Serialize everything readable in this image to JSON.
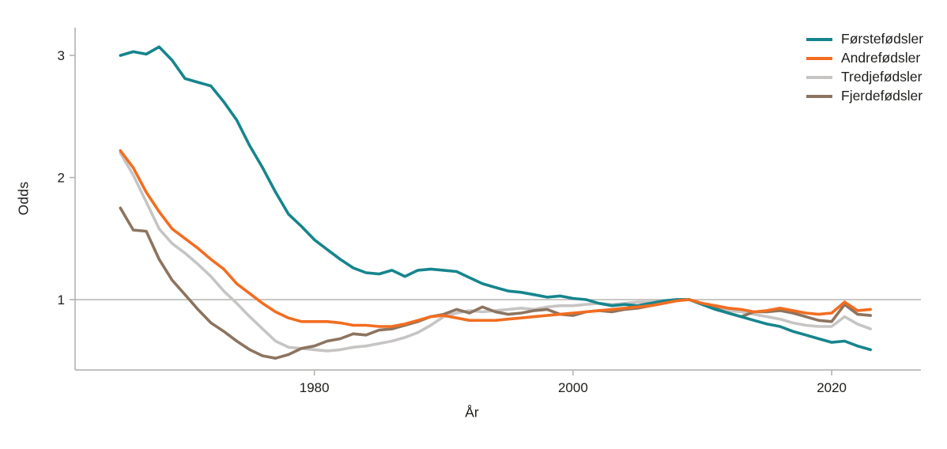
{
  "chart_data": {
    "type": "line",
    "title": "",
    "xlabel": "År",
    "ylabel": "Odds",
    "grid": false,
    "reference_line_y": 1,
    "legend_position": "top-right",
    "xlim": [
      1961.5,
      2026.9
    ],
    "ylim": [
      0.424,
      3.227
    ],
    "x_tick_years": [
      1980,
      2000,
      2020
    ],
    "x_tick_labels": [
      "1980",
      "2000",
      "2020"
    ],
    "y_tick_values": [
      1,
      2,
      3
    ],
    "y_tick_labels": [
      "1",
      "2",
      "3"
    ],
    "axis_color": "#b0aeab",
    "text_color": "#1d1d1b",
    "x": [
      1965,
      1966,
      1967,
      1968,
      1969,
      1970,
      1971,
      1972,
      1973,
      1974,
      1975,
      1976,
      1977,
      1978,
      1979,
      1980,
      1981,
      1982,
      1983,
      1984,
      1985,
      1986,
      1987,
      1988,
      1989,
      1990,
      1991,
      1992,
      1993,
      1994,
      1995,
      1996,
      1997,
      1998,
      1999,
      2000,
      2001,
      2002,
      2003,
      2004,
      2005,
      2006,
      2007,
      2008,
      2009,
      2010,
      2011,
      2012,
      2013,
      2014,
      2015,
      2016,
      2017,
      2018,
      2019,
      2020,
      2021,
      2022,
      2023
    ],
    "series": [
      {
        "name": "Førstefødsler",
        "color": "#16858d",
        "values": [
          3.0,
          3.03,
          3.01,
          3.07,
          2.96,
          2.81,
          2.78,
          2.75,
          2.62,
          2.47,
          2.26,
          2.08,
          1.88,
          1.7,
          1.6,
          1.49,
          1.41,
          1.33,
          1.26,
          1.22,
          1.21,
          1.24,
          1.19,
          1.24,
          1.25,
          1.24,
          1.23,
          1.18,
          1.13,
          1.1,
          1.07,
          1.06,
          1.04,
          1.02,
          1.03,
          1.01,
          1.0,
          0.97,
          0.95,
          0.96,
          0.95,
          0.97,
          0.99,
          1.0,
          1.0,
          0.96,
          0.92,
          0.89,
          0.86,
          0.83,
          0.8,
          0.78,
          0.74,
          0.71,
          0.68,
          0.65,
          0.66,
          0.62,
          0.59
        ]
      },
      {
        "name": "Andrefødsler",
        "color": "#f26d21",
        "values": [
          2.22,
          2.08,
          1.88,
          1.72,
          1.58,
          1.5,
          1.42,
          1.33,
          1.25,
          1.13,
          1.05,
          0.97,
          0.9,
          0.85,
          0.82,
          0.82,
          0.82,
          0.81,
          0.79,
          0.79,
          0.78,
          0.78,
          0.8,
          0.83,
          0.86,
          0.87,
          0.85,
          0.83,
          0.83,
          0.83,
          0.84,
          0.85,
          0.86,
          0.87,
          0.88,
          0.89,
          0.9,
          0.91,
          0.92,
          0.93,
          0.94,
          0.95,
          0.97,
          0.99,
          1.0,
          0.97,
          0.95,
          0.93,
          0.92,
          0.9,
          0.91,
          0.93,
          0.91,
          0.89,
          0.88,
          0.89,
          0.98,
          0.91,
          0.92
        ]
      },
      {
        "name": "Tredjefødsler",
        "color": "#c6c5c4",
        "values": [
          2.2,
          2.02,
          1.8,
          1.58,
          1.46,
          1.38,
          1.29,
          1.19,
          1.07,
          0.97,
          0.86,
          0.76,
          0.66,
          0.61,
          0.6,
          0.59,
          0.58,
          0.59,
          0.61,
          0.62,
          0.64,
          0.66,
          0.69,
          0.73,
          0.79,
          0.86,
          0.89,
          0.91,
          0.9,
          0.91,
          0.92,
          0.93,
          0.92,
          0.94,
          0.95,
          0.95,
          0.96,
          0.97,
          0.96,
          0.97,
          0.98,
          0.98,
          0.99,
          1.0,
          1.0,
          0.97,
          0.94,
          0.91,
          0.9,
          0.88,
          0.86,
          0.84,
          0.81,
          0.79,
          0.78,
          0.78,
          0.86,
          0.8,
          0.76
        ]
      },
      {
        "name": "Fjerdefødsler",
        "color": "#8c7460",
        "values": [
          1.75,
          1.57,
          1.56,
          1.33,
          1.16,
          1.04,
          0.92,
          0.81,
          0.74,
          0.66,
          0.59,
          0.54,
          0.52,
          0.55,
          0.6,
          0.62,
          0.66,
          0.68,
          0.72,
          0.71,
          0.75,
          0.76,
          0.79,
          0.82,
          0.86,
          0.88,
          0.92,
          0.89,
          0.94,
          0.9,
          0.88,
          0.89,
          0.91,
          0.92,
          0.88,
          0.87,
          0.9,
          0.91,
          0.9,
          0.92,
          0.93,
          0.95,
          0.97,
          1.0,
          1.0,
          0.96,
          0.93,
          0.89,
          0.86,
          0.9,
          0.9,
          0.91,
          0.89,
          0.86,
          0.83,
          0.82,
          0.96,
          0.88,
          0.87
        ]
      }
    ]
  }
}
